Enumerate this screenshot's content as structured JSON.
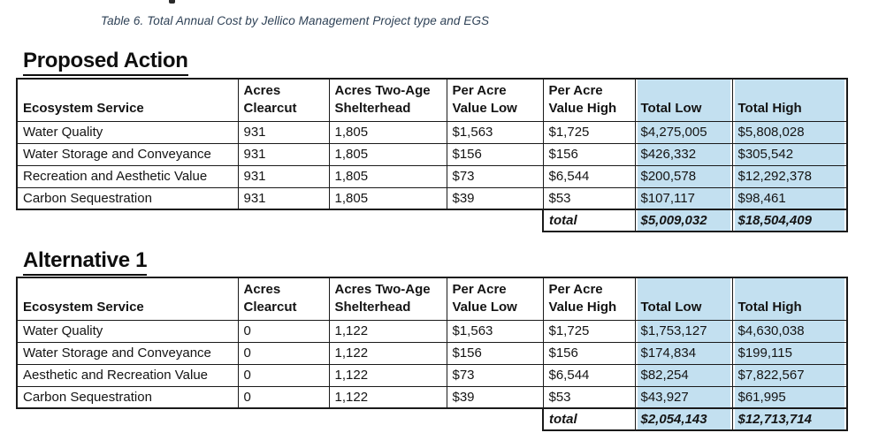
{
  "caption": "Table 6. Total Annual Cost by Jellico Management Project type and EGS",
  "colors": {
    "highlight_fill": "#c3e0f0",
    "caption_text": "#2e4156",
    "border": "#1a1a1a"
  },
  "tables": [
    {
      "title": "Proposed Action",
      "headers": [
        [
          "Ecosystem Service"
        ],
        [
          "Acres",
          "Clearcut"
        ],
        [
          "Acres Two-Age",
          "Shelterhead"
        ],
        [
          "Per Acre",
          "Value Low"
        ],
        [
          "Per Acre",
          "Value High"
        ],
        [
          "Total Low"
        ],
        [
          "Total High"
        ]
      ],
      "rows": [
        [
          "Water Quality",
          "931",
          "1,805",
          "$1,563",
          "$1,725",
          "$4,275,005",
          "$5,808,028"
        ],
        [
          "Water Storage and Conveyance",
          "931",
          "1,805",
          "$156",
          "$156",
          "$426,332",
          "$305,542"
        ],
        [
          "Recreation and Aesthetic Value",
          "931",
          "1,805",
          "$73",
          "$6,544",
          "$200,578",
          "$12,292,378"
        ],
        [
          "Carbon Sequestration",
          "931",
          "1,805",
          "$39",
          "$53",
          "$107,117",
          "$98,461"
        ]
      ],
      "total_row": {
        "label": "total",
        "low": "$5,009,032",
        "high": "$18,504,409"
      }
    },
    {
      "title": "Alternative 1",
      "headers": [
        [
          "Ecosystem Service"
        ],
        [
          "Acres",
          "Clearcut"
        ],
        [
          "Acres Two-Age",
          "Shelterhead"
        ],
        [
          "Per Acre",
          "Value Low"
        ],
        [
          "Per Acre",
          "Value High"
        ],
        [
          "Total Low"
        ],
        [
          "Total High"
        ]
      ],
      "rows": [
        [
          "Water Quality",
          "0",
          "1,122",
          "$1,563",
          "$1,725",
          "$1,753,127",
          "$4,630,038"
        ],
        [
          "Water Storage and Conveyance",
          "0",
          "1,122",
          "$156",
          "$156",
          "$174,834",
          "$199,115"
        ],
        [
          "Aesthetic and Recreation Value",
          "0",
          "1,122",
          "$73",
          "$6,544",
          "$82,254",
          "$7,822,567"
        ],
        [
          "Carbon Sequestration",
          "0",
          "1,122",
          "$39",
          "$53",
          "$43,927",
          "$61,995"
        ]
      ],
      "total_row": {
        "label": "total",
        "low": "$2,054,143",
        "high": "$12,713,714"
      }
    }
  ]
}
